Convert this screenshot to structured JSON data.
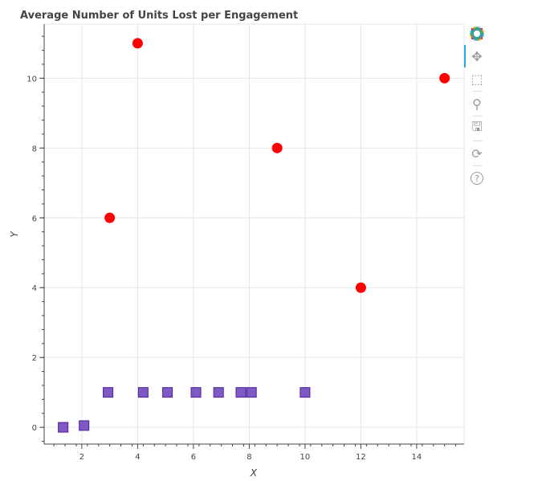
{
  "chart_data": {
    "type": "scatter",
    "title": "Average Number of Units Lost per Engagement",
    "xlabel": "X",
    "ylabel": "Y",
    "xlim": [
      0.65,
      15.7
    ],
    "ylim": [
      -0.48,
      11.55
    ],
    "xticks": [
      2,
      4,
      6,
      8,
      10,
      12,
      14
    ],
    "yticks": [
      0,
      2,
      4,
      6,
      8,
      10
    ],
    "grid": true,
    "series": [
      {
        "marker": "circle",
        "color": "#ff0000",
        "x": [
          3,
          4,
          9,
          12,
          15
        ],
        "y": [
          6,
          11,
          8,
          4,
          10
        ]
      },
      {
        "marker": "square",
        "color": "#6a3db8",
        "x": [
          1.33,
          2.08,
          2.94,
          4.2,
          5.07,
          6.09,
          6.9,
          7.7,
          8.08,
          10
        ],
        "y": [
          0,
          0.05,
          1,
          1,
          1,
          1,
          1,
          1,
          1,
          1
        ]
      }
    ]
  },
  "toolbar": {
    "tools": [
      {
        "icon": "bokeh-logo-icon"
      },
      {
        "icon": "pan-icon",
        "glyph": "✥",
        "active": true
      },
      {
        "icon": "box-zoom-icon",
        "glyph": "⬚"
      },
      {
        "icon": "wheel-zoom-icon",
        "glyph": "⚲"
      },
      {
        "icon": "save-icon",
        "glyph": "🖫"
      },
      {
        "icon": "reset-icon",
        "glyph": "⟳"
      },
      {
        "icon": "help-icon",
        "glyph": "?"
      }
    ]
  }
}
